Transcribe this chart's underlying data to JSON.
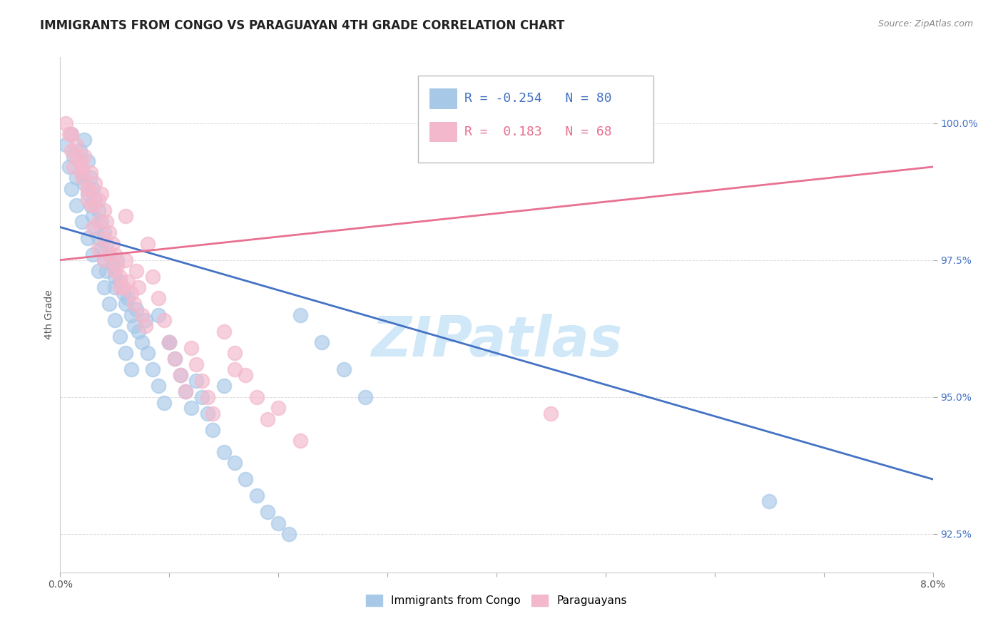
{
  "title": "IMMIGRANTS FROM CONGO VS PARAGUAYAN 4TH GRADE CORRELATION CHART",
  "source": "Source: ZipAtlas.com",
  "ylabel": "4th Grade",
  "yticks": [
    92.5,
    95.0,
    97.5,
    100.0
  ],
  "ytick_labels": [
    "92.5%",
    "95.0%",
    "97.5%",
    "100.0%"
  ],
  "xlim": [
    0.0,
    8.0
  ],
  "ylim": [
    91.8,
    101.2
  ],
  "r_congo": -0.254,
  "n_congo": 80,
  "r_paraguayan": 0.183,
  "n_paraguayan": 68,
  "congo_color": "#a8c8e8",
  "paraguayan_color": "#f4b8cc",
  "congo_line_color": "#4472c4",
  "paraguayan_line_color": "#e87090",
  "watermark": "ZIPatlas",
  "watermark_color": "#d0e8f8",
  "congo_line_x0": 0.0,
  "congo_line_y0": 98.1,
  "congo_line_x1": 8.0,
  "congo_line_y1": 93.5,
  "para_line_x0": 0.0,
  "para_line_y0": 97.5,
  "para_line_x1": 8.0,
  "para_line_y1": 99.2,
  "background_color": "#ffffff",
  "grid_color": "#dddddd",
  "title_fontsize": 12,
  "axis_label_fontsize": 10,
  "tick_fontsize": 10,
  "legend_fontsize": 13,
  "congo_scatter_x": [
    0.05,
    0.08,
    0.1,
    0.12,
    0.15,
    0.18,
    0.2,
    0.22,
    0.22,
    0.25,
    0.25,
    0.28,
    0.28,
    0.3,
    0.3,
    0.32,
    0.32,
    0.35,
    0.35,
    0.38,
    0.38,
    0.4,
    0.4,
    0.42,
    0.42,
    0.45,
    0.48,
    0.5,
    0.5,
    0.52,
    0.55,
    0.58,
    0.6,
    0.62,
    0.65,
    0.68,
    0.7,
    0.72,
    0.75,
    0.78,
    0.8,
    0.85,
    0.9,
    0.95,
    1.0,
    1.05,
    1.1,
    1.15,
    1.2,
    1.25,
    1.3,
    1.35,
    1.4,
    1.5,
    1.6,
    1.7,
    1.8,
    1.9,
    2.0,
    2.1,
    2.2,
    2.4,
    2.6,
    2.8,
    0.1,
    0.15,
    0.2,
    0.25,
    0.3,
    0.35,
    0.4,
    0.45,
    0.5,
    0.55,
    0.6,
    0.65,
    6.5,
    0.9,
    1.0,
    1.5
  ],
  "congo_scatter_y": [
    99.6,
    99.2,
    99.8,
    99.4,
    99.0,
    99.5,
    99.1,
    99.7,
    98.9,
    99.3,
    98.7,
    99.0,
    98.5,
    98.8,
    98.3,
    98.6,
    98.1,
    98.4,
    97.9,
    98.2,
    97.7,
    98.0,
    97.5,
    97.8,
    97.3,
    97.6,
    97.4,
    97.2,
    97.0,
    97.5,
    97.1,
    96.9,
    96.7,
    96.8,
    96.5,
    96.3,
    96.6,
    96.2,
    96.0,
    96.4,
    95.8,
    95.5,
    95.2,
    94.9,
    96.0,
    95.7,
    95.4,
    95.1,
    94.8,
    95.3,
    95.0,
    94.7,
    94.4,
    94.0,
    93.8,
    93.5,
    93.2,
    92.9,
    92.7,
    92.5,
    96.5,
    96.0,
    95.5,
    95.0,
    98.8,
    98.5,
    98.2,
    97.9,
    97.6,
    97.3,
    97.0,
    96.7,
    96.4,
    96.1,
    95.8,
    95.5,
    93.1,
    96.5,
    96.0,
    95.2
  ],
  "paraguayan_scatter_x": [
    0.05,
    0.08,
    0.1,
    0.12,
    0.15,
    0.18,
    0.2,
    0.22,
    0.25,
    0.28,
    0.3,
    0.32,
    0.35,
    0.38,
    0.4,
    0.42,
    0.45,
    0.48,
    0.5,
    0.52,
    0.55,
    0.58,
    0.6,
    0.62,
    0.65,
    0.68,
    0.7,
    0.72,
    0.75,
    0.78,
    0.8,
    0.85,
    0.9,
    0.95,
    1.0,
    1.05,
    1.1,
    1.15,
    1.2,
    1.25,
    1.3,
    1.35,
    1.4,
    1.5,
    1.6,
    1.7,
    1.8,
    1.9,
    2.0,
    2.2,
    0.1,
    0.15,
    0.2,
    0.25,
    0.3,
    0.35,
    0.4,
    0.45,
    0.5,
    0.55,
    0.3,
    0.35,
    0.4,
    4.5,
    0.2,
    0.6,
    0.25,
    1.6
  ],
  "paraguayan_scatter_y": [
    100.0,
    99.8,
    99.5,
    99.2,
    99.6,
    99.3,
    99.0,
    99.4,
    98.8,
    99.1,
    98.5,
    98.9,
    98.6,
    98.7,
    98.4,
    98.2,
    98.0,
    97.8,
    97.6,
    97.4,
    97.2,
    97.0,
    97.5,
    97.1,
    96.9,
    96.7,
    97.3,
    97.0,
    96.5,
    96.3,
    97.8,
    97.2,
    96.8,
    96.4,
    96.0,
    95.7,
    95.4,
    95.1,
    95.9,
    95.6,
    95.3,
    95.0,
    94.7,
    96.2,
    95.8,
    95.4,
    95.0,
    94.6,
    94.8,
    94.2,
    99.8,
    99.4,
    99.1,
    98.8,
    98.5,
    98.2,
    97.9,
    97.6,
    97.3,
    97.0,
    98.1,
    97.7,
    97.5,
    94.7,
    99.2,
    98.3,
    98.6,
    95.5
  ]
}
